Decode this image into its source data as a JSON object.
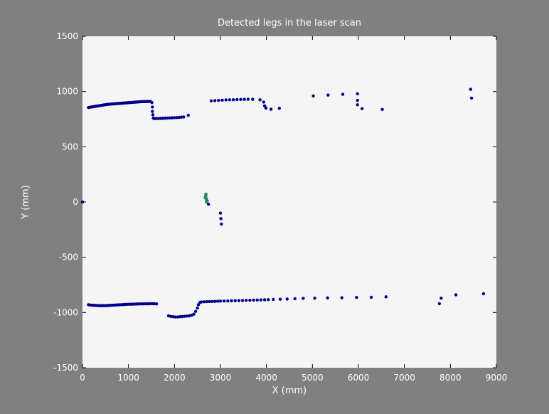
{
  "chart_data": {
    "type": "scatter",
    "title": "Detected legs in the laser scan",
    "xlabel": "X (mm)",
    "ylabel": "Y (mm)",
    "xlim": [
      0,
      9000
    ],
    "ylim": [
      -1500,
      1500
    ],
    "xticks": [
      0,
      1000,
      2000,
      3000,
      4000,
      5000,
      6000,
      7000,
      8000,
      9000
    ],
    "yticks": [
      -1500,
      -1000,
      -500,
      0,
      500,
      1000,
      1500
    ],
    "grid": false,
    "colors": {
      "figure_bg": "#808080",
      "axes_bg": "#f5f5f5",
      "scan": "#00008b",
      "legs": "#2e8b57",
      "text": "#ffffff"
    },
    "series": [
      {
        "color": "#00008b",
        "points": [
          [
            130,
            855
          ],
          [
            160,
            858
          ],
          [
            190,
            860
          ],
          [
            220,
            862
          ],
          [
            250,
            864
          ],
          [
            280,
            866
          ],
          [
            310,
            868
          ],
          [
            340,
            870
          ],
          [
            370,
            872
          ],
          [
            400,
            874
          ],
          [
            430,
            876
          ],
          [
            460,
            878
          ],
          [
            490,
            880
          ],
          [
            520,
            882
          ],
          [
            550,
            884
          ],
          [
            580,
            885
          ],
          [
            610,
            886
          ],
          [
            640,
            887
          ],
          [
            670,
            888
          ],
          [
            700,
            889
          ],
          [
            730,
            890
          ],
          [
            760,
            891
          ],
          [
            790,
            892
          ],
          [
            820,
            893
          ],
          [
            850,
            894
          ],
          [
            880,
            895
          ],
          [
            910,
            896
          ],
          [
            940,
            897
          ],
          [
            970,
            898
          ],
          [
            1000,
            899
          ],
          [
            1030,
            900
          ],
          [
            1060,
            901
          ],
          [
            1090,
            902
          ],
          [
            1120,
            903
          ],
          [
            1150,
            904
          ],
          [
            1180,
            905
          ],
          [
            1210,
            906
          ],
          [
            1240,
            907
          ],
          [
            1270,
            908
          ],
          [
            1300,
            908
          ],
          [
            1330,
            909
          ],
          [
            1360,
            909
          ],
          [
            1390,
            910
          ],
          [
            1420,
            910
          ],
          [
            1450,
            910
          ],
          [
            1480,
            910
          ],
          [
            1510,
            900
          ],
          [
            1520,
            860
          ],
          [
            1520,
            820
          ],
          [
            1530,
            790
          ],
          [
            1540,
            760
          ],
          [
            1560,
            755
          ],
          [
            1600,
            755
          ],
          [
            1650,
            756
          ],
          [
            1700,
            757
          ],
          [
            1750,
            758
          ],
          [
            1800,
            759
          ],
          [
            1850,
            760
          ],
          [
            1900,
            761
          ],
          [
            1950,
            762
          ],
          [
            2000,
            763
          ],
          [
            2050,
            764
          ],
          [
            2100,
            766
          ],
          [
            2150,
            768
          ],
          [
            2200,
            770
          ],
          [
            2300,
            785
          ],
          [
            2800,
            915
          ],
          [
            2880,
            918
          ],
          [
            2960,
            920
          ],
          [
            3040,
            922
          ],
          [
            3120,
            924
          ],
          [
            3200,
            925
          ],
          [
            3280,
            926
          ],
          [
            3360,
            927
          ],
          [
            3440,
            928
          ],
          [
            3520,
            929
          ],
          [
            3600,
            930
          ],
          [
            3700,
            930
          ],
          [
            3860,
            925
          ],
          [
            3940,
            905
          ],
          [
            3960,
            870
          ],
          [
            3990,
            850
          ],
          [
            4100,
            840
          ],
          [
            4280,
            848
          ],
          [
            5020,
            960
          ],
          [
            5340,
            968
          ],
          [
            5660,
            975
          ],
          [
            5980,
            980
          ],
          [
            5980,
            920
          ],
          [
            5980,
            880
          ],
          [
            6080,
            845
          ],
          [
            6520,
            838
          ],
          [
            8440,
            1020
          ],
          [
            8460,
            940
          ],
          [
            0,
            0
          ],
          [
            2690,
            30
          ],
          [
            2710,
            10
          ],
          [
            2740,
            -20
          ],
          [
            3000,
            -100
          ],
          [
            3010,
            -150
          ],
          [
            3020,
            -200
          ],
          [
            130,
            -930
          ],
          [
            170,
            -932
          ],
          [
            210,
            -934
          ],
          [
            250,
            -935
          ],
          [
            290,
            -936
          ],
          [
            330,
            -937
          ],
          [
            370,
            -938
          ],
          [
            410,
            -938
          ],
          [
            450,
            -938
          ],
          [
            490,
            -938
          ],
          [
            530,
            -937
          ],
          [
            570,
            -936
          ],
          [
            610,
            -935
          ],
          [
            650,
            -934
          ],
          [
            690,
            -933
          ],
          [
            730,
            -932
          ],
          [
            770,
            -931
          ],
          [
            810,
            -930
          ],
          [
            850,
            -929
          ],
          [
            890,
            -928
          ],
          [
            930,
            -927
          ],
          [
            970,
            -926
          ],
          [
            1010,
            -925
          ],
          [
            1050,
            -925
          ],
          [
            1090,
            -924
          ],
          [
            1130,
            -924
          ],
          [
            1170,
            -923
          ],
          [
            1210,
            -923
          ],
          [
            1250,
            -922
          ],
          [
            1290,
            -922
          ],
          [
            1330,
            -922
          ],
          [
            1370,
            -921
          ],
          [
            1410,
            -921
          ],
          [
            1450,
            -921
          ],
          [
            1490,
            -920
          ],
          [
            1530,
            -920
          ],
          [
            1570,
            -921
          ],
          [
            1610,
            -922
          ],
          [
            1870,
            -1030
          ],
          [
            1920,
            -1035
          ],
          [
            1970,
            -1038
          ],
          [
            2020,
            -1040
          ],
          [
            2070,
            -1040
          ],
          [
            2120,
            -1038
          ],
          [
            2170,
            -1036
          ],
          [
            2220,
            -1034
          ],
          [
            2270,
            -1032
          ],
          [
            2320,
            -1030
          ],
          [
            2370,
            -1025
          ],
          [
            2420,
            -1015
          ],
          [
            2460,
            -990
          ],
          [
            2500,
            -960
          ],
          [
            2520,
            -930
          ],
          [
            2550,
            -910
          ],
          [
            2580,
            -905
          ],
          [
            2640,
            -903
          ],
          [
            2700,
            -902
          ],
          [
            2760,
            -901
          ],
          [
            2820,
            -900
          ],
          [
            2880,
            -899
          ],
          [
            2940,
            -898
          ],
          [
            3000,
            -897
          ],
          [
            3080,
            -896
          ],
          [
            3160,
            -895
          ],
          [
            3240,
            -894
          ],
          [
            3320,
            -893
          ],
          [
            3400,
            -892
          ],
          [
            3480,
            -891
          ],
          [
            3560,
            -890
          ],
          [
            3640,
            -889
          ],
          [
            3720,
            -888
          ],
          [
            3800,
            -887
          ],
          [
            3880,
            -886
          ],
          [
            3960,
            -885
          ],
          [
            4040,
            -884
          ],
          [
            4150,
            -882
          ],
          [
            4300,
            -880
          ],
          [
            4450,
            -878
          ],
          [
            4620,
            -875
          ],
          [
            4800,
            -872
          ],
          [
            5050,
            -870
          ],
          [
            5330,
            -868
          ],
          [
            5640,
            -866
          ],
          [
            5960,
            -864
          ],
          [
            6280,
            -862
          ],
          [
            6600,
            -858
          ],
          [
            7760,
            -920
          ],
          [
            7800,
            -870
          ],
          [
            8120,
            -840
          ],
          [
            8720,
            -830
          ]
        ]
      },
      {
        "color": "#2e8b57",
        "points": [
          [
            2670,
            40
          ],
          [
            2680,
            55
          ],
          [
            2685,
            70
          ],
          [
            2695,
            20
          ],
          [
            2700,
            0
          ]
        ]
      }
    ]
  }
}
